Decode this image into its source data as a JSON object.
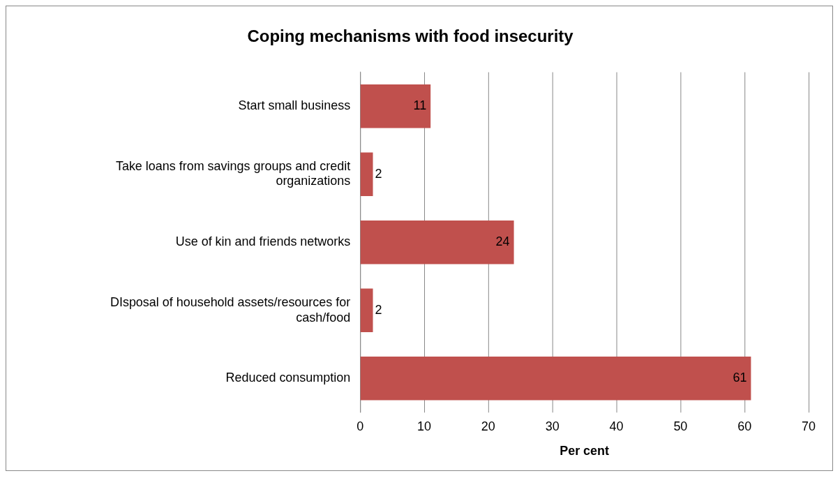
{
  "chart_data": {
    "type": "bar",
    "orientation": "horizontal",
    "title": "Coping mechanisms with food insecurity",
    "xlabel": "Per cent",
    "categories": [
      "Start small business",
      "Take loans from savings groups and credit organizations",
      "Use of kin and friends networks",
      "DIsposal of household assets/resources for cash/food",
      "Reduced consumption"
    ],
    "values": [
      11,
      2,
      24,
      2,
      61
    ],
    "color": "#c0504d",
    "data_labels": true,
    "xlim": [
      0,
      70
    ],
    "xticks": [
      0,
      10,
      20,
      30,
      40,
      50,
      60,
      70
    ],
    "grid": "x",
    "legend": false
  }
}
